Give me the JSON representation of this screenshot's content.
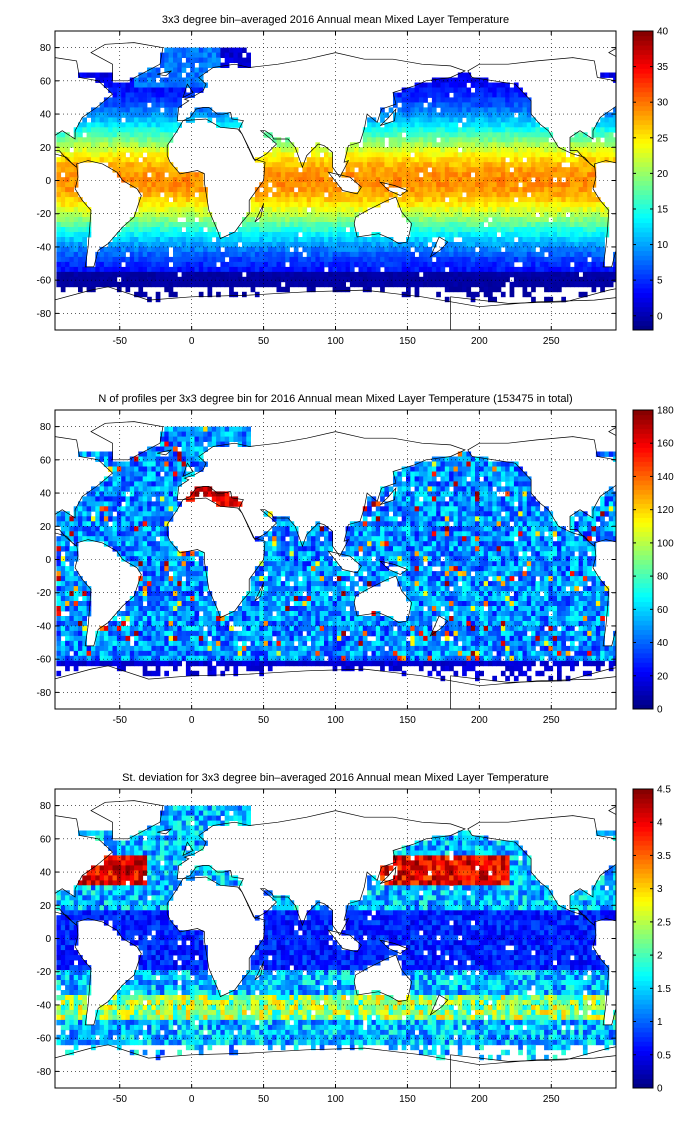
{
  "figure": {
    "colors": {
      "background": "#ffffff",
      "land": "#ffffff",
      "coast": "#000000",
      "jet_colormap": [
        "#00008f",
        "#0000ff",
        "#0080ff",
        "#00ffff",
        "#80ff80",
        "#ffff00",
        "#ff8000",
        "#ff0000",
        "#800000"
      ]
    }
  },
  "chart_data": [
    {
      "type": "heatmap",
      "title": "3x3 degree bin–averaged 2016 Annual mean Mixed Layer Temperature",
      "variable": "mean",
      "xlim": [
        -95,
        295
      ],
      "ylim": [
        -90,
        90
      ],
      "xticks": [
        -50,
        0,
        50,
        100,
        150,
        200,
        250
      ],
      "xtick_labels": [
        "-50",
        "0",
        "50",
        "100",
        "150",
        "200",
        "250"
      ],
      "yticks": [
        80,
        60,
        40,
        20,
        0,
        -20,
        -40,
        -60,
        -80
      ],
      "ytick_labels": [
        "80",
        "60",
        "40",
        "20",
        "0",
        "-20",
        "-40",
        "-60",
        "-80"
      ],
      "grid": true,
      "bin_size_deg": 3,
      "colorbar": {
        "position": "right",
        "clim": [
          -2,
          40
        ],
        "ticks": [
          40,
          35,
          30,
          25,
          20,
          15,
          10,
          5,
          0
        ],
        "tick_labels": [
          "40",
          "35",
          "30",
          "25",
          "20",
          "15",
          "10",
          "5",
          "0"
        ]
      }
    },
    {
      "type": "heatmap",
      "title": "N of profiles per 3x3 degree bin for 2016 Annual mean Mixed Layer Temperature  (153475 in total)",
      "variable": "count",
      "xlim": [
        -95,
        295
      ],
      "ylim": [
        -90,
        90
      ],
      "xticks": [
        -50,
        0,
        50,
        100,
        150,
        200,
        250
      ],
      "xtick_labels": [
        "-50",
        "0",
        "50",
        "100",
        "150",
        "200",
        "250"
      ],
      "yticks": [
        80,
        60,
        40,
        20,
        0,
        -20,
        -40,
        -60,
        -80
      ],
      "ytick_labels": [
        "80",
        "60",
        "40",
        "20",
        "0",
        "-20",
        "-40",
        "-60",
        "-80"
      ],
      "grid": true,
      "bin_size_deg": 3,
      "colorbar": {
        "position": "right",
        "clim": [
          0,
          180
        ],
        "ticks": [
          180,
          160,
          140,
          120,
          100,
          80,
          60,
          40,
          20,
          0
        ],
        "tick_labels": [
          "180",
          "160",
          "140",
          "120",
          "100",
          "80",
          "60",
          "40",
          "20",
          "0"
        ]
      }
    },
    {
      "type": "heatmap",
      "title": "St. deviation for 3x3 degree bin–averaged 2016 Annual mean Mixed Layer Temperature",
      "variable": "std",
      "xlim": [
        -95,
        295
      ],
      "ylim": [
        -90,
        90
      ],
      "xticks": [
        -50,
        0,
        50,
        100,
        150,
        200,
        250
      ],
      "xtick_labels": [
        "-50",
        "0",
        "50",
        "100",
        "150",
        "200",
        "250"
      ],
      "yticks": [
        80,
        60,
        40,
        20,
        0,
        -20,
        -40,
        -60,
        -80
      ],
      "ytick_labels": [
        "80",
        "60",
        "40",
        "20",
        "0",
        "-20",
        "-40",
        "-60",
        "-80"
      ],
      "grid": true,
      "bin_size_deg": 3,
      "colorbar": {
        "position": "right",
        "clim": [
          0,
          4.5
        ],
        "ticks": [
          4.5,
          4,
          3.5,
          3,
          2.5,
          2,
          1.5,
          1,
          0.5,
          0
        ],
        "tick_labels": [
          "4.5",
          "4",
          "3.5",
          "3",
          "2.5",
          "2",
          "1.5",
          "1",
          "0.5",
          "0"
        ]
      }
    }
  ]
}
